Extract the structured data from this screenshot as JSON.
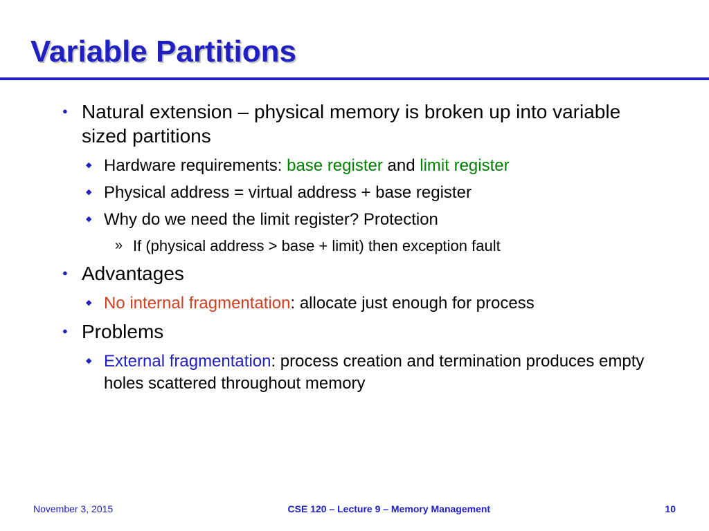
{
  "title": "Variable Partitions",
  "colors": {
    "accent": "#2020c0",
    "green": "#008000",
    "red": "#d04020",
    "shadow": "#c0c0c0",
    "text": "#000000",
    "background": "#ffffff"
  },
  "fonts": {
    "title_size": 44,
    "l1_size": 28,
    "l2_size": 24,
    "l3_size": 22,
    "footer_size": 14
  },
  "bullets": {
    "b1": "Natural extension – physical memory is broken up into variable sized partitions",
    "b1a_pre": "Hardware requirements: ",
    "b1a_g1": "base register",
    "b1a_mid": " and ",
    "b1a_g2": "limit register",
    "b1b": "Physical address = virtual address + base register",
    "b1c": "Why do we need the limit register?  Protection",
    "b1c_i": "If (physical address > base + limit) then exception fault",
    "b2": "Advantages",
    "b2a_r": "No internal fragmentation",
    "b2a_post": ": allocate just enough for process",
    "b3": "Problems",
    "b3a_b": "External fragmentation",
    "b3a_post": ": process creation and termination produces empty holes scattered throughout memory"
  },
  "footer": {
    "date": "November 3, 2015",
    "center": "CSE 120 – Lecture 9 – Memory Management",
    "page": "10"
  }
}
